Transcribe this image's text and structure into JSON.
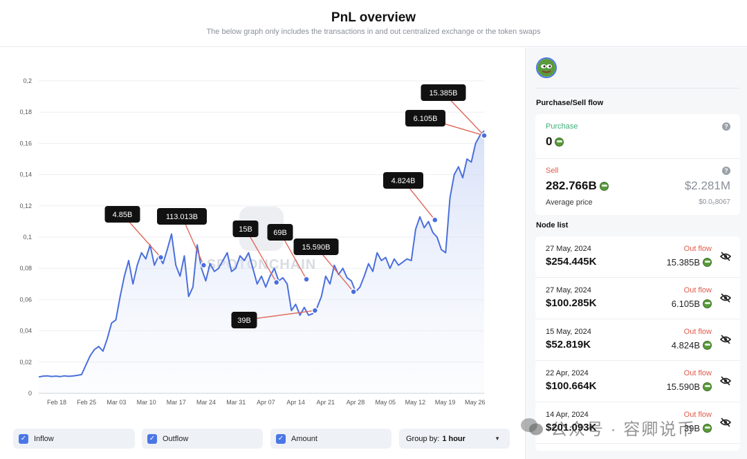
{
  "header": {
    "title": "PnL overview",
    "subtitle": "The below graph only includes the transactions in and out centralized exchange or the token swaps"
  },
  "chart_data": {
    "type": "line",
    "title": "PnL overview",
    "ylim": [
      0,
      0.2
    ],
    "yticks": [
      "0",
      "0,02",
      "0,04",
      "0,06",
      "0,08",
      "0,1",
      "0,12",
      "0,14",
      "0,16",
      "0,18",
      "0,2"
    ],
    "xticks": [
      "Feb 18",
      "Feb 25",
      "Mar 03",
      "Mar 10",
      "Mar 17",
      "Mar 24",
      "Mar 31",
      "Apr 07",
      "Apr 14",
      "Apr 21",
      "Apr 28",
      "May 05",
      "May 12",
      "May 19",
      "May 26"
    ],
    "series": [
      {
        "name": "Price",
        "x": [
          0,
          1,
          2,
          3,
          4,
          5,
          6,
          7,
          8,
          9,
          10,
          11,
          12,
          13,
          14,
          15,
          16,
          17,
          18,
          19,
          20,
          21,
          22,
          23,
          24,
          25,
          26,
          27,
          28,
          29,
          30,
          31,
          32,
          33,
          34,
          35,
          36,
          37,
          38,
          39,
          40,
          41,
          42,
          43,
          44,
          45,
          46,
          47,
          48,
          49,
          50,
          51,
          52,
          53,
          54,
          55,
          56,
          57,
          58,
          59,
          60,
          61,
          62,
          63,
          64,
          65,
          66,
          67,
          68,
          69,
          70,
          71,
          72,
          73,
          74,
          75,
          76,
          77,
          78,
          79,
          80,
          81,
          82,
          83,
          84,
          85,
          86,
          87,
          88,
          89,
          90,
          91,
          92,
          93,
          94,
          95,
          96,
          97,
          98,
          99,
          100,
          101,
          102,
          103,
          104
        ],
        "y": [
          0.0105,
          0.011,
          0.0112,
          0.0108,
          0.011,
          0.0107,
          0.0112,
          0.0109,
          0.0111,
          0.0115,
          0.012,
          0.018,
          0.024,
          0.028,
          0.03,
          0.027,
          0.035,
          0.045,
          0.047,
          0.062,
          0.075,
          0.085,
          0.07,
          0.082,
          0.09,
          0.086,
          0.095,
          0.082,
          0.088,
          0.083,
          0.092,
          0.102,
          0.082,
          0.075,
          0.088,
          0.062,
          0.068,
          0.095,
          0.08,
          0.072,
          0.083,
          0.078,
          0.08,
          0.085,
          0.09,
          0.078,
          0.08,
          0.088,
          0.085,
          0.09,
          0.08,
          0.07,
          0.075,
          0.068,
          0.075,
          0.08,
          0.072,
          0.074,
          0.07,
          0.053,
          0.057,
          0.05,
          0.055,
          0.05,
          0.051,
          0.055,
          0.062,
          0.075,
          0.07,
          0.082,
          0.076,
          0.08,
          0.074,
          0.072,
          0.065,
          0.068,
          0.075,
          0.083,
          0.078,
          0.09,
          0.085,
          0.087,
          0.08,
          0.086,
          0.082,
          0.084,
          0.086,
          0.085,
          0.105,
          0.113,
          0.106,
          0.11,
          0.103,
          0.1,
          0.092,
          0.09,
          0.125,
          0.14,
          0.145,
          0.138,
          0.15,
          0.148,
          0.16,
          0.165,
          0.168
        ]
      }
    ],
    "annotations": [
      {
        "label": "4.85B",
        "x": 28.5,
        "y": 0.087
      },
      {
        "label": "113.013B",
        "x": 38.5,
        "y": 0.082
      },
      {
        "label": "15B",
        "x": 55.5,
        "y": 0.071
      },
      {
        "label": "69B",
        "x": 62.5,
        "y": 0.073
      },
      {
        "label": "39B",
        "x": 64.5,
        "y": 0.053
      },
      {
        "label": "15.590B",
        "x": 73.5,
        "y": 0.065
      },
      {
        "label": "4.824B",
        "x": 92.5,
        "y": 0.111
      },
      {
        "label": "6.105B",
        "x": 104.0,
        "y": 0.165
      },
      {
        "label": "15.385B",
        "x": 104.0,
        "y": 0.165
      }
    ],
    "watermark": "SPOTONCHAIN"
  },
  "legend": {
    "items": [
      {
        "label": "Inflow",
        "checked": true
      },
      {
        "label": "Outflow",
        "checked": true
      },
      {
        "label": "Amount",
        "checked": true
      }
    ],
    "group_by_label": "Group by:",
    "group_by_value": "1 hour"
  },
  "sidebar": {
    "purchase_sell_title": "Purchase/Sell flow",
    "purchase": {
      "label": "Purchase",
      "amount": "0"
    },
    "sell": {
      "label": "Sell",
      "amount": "282.766B",
      "usd": "$2.281M",
      "avg_label": "Average price",
      "avg_value": "$0.0₅8067"
    },
    "node_list_title": "Node list",
    "nodes": [
      {
        "date": "27 May, 2024",
        "usd": "$254.445K",
        "type": "Out flow",
        "amount": "15.385B"
      },
      {
        "date": "27 May, 2024",
        "usd": "$100.285K",
        "type": "Out flow",
        "amount": "6.105B"
      },
      {
        "date": "15 May, 2024",
        "usd": "$52.819K",
        "type": "Out flow",
        "amount": "4.824B"
      },
      {
        "date": "22 Apr, 2024",
        "usd": "$100.664K",
        "type": "Out flow",
        "amount": "15.590B"
      },
      {
        "date": "14 Apr, 2024",
        "usd": "$201.093K",
        "type": "Out flow",
        "amount": "39B"
      }
    ]
  },
  "overlay": {
    "wechat_text": "公众号 · 容卿说币"
  },
  "colors": {
    "line": "#4a6fdc",
    "annotation_line": "#e0675a",
    "out_flow": "#e05a4a",
    "check": "#4a76e6"
  }
}
